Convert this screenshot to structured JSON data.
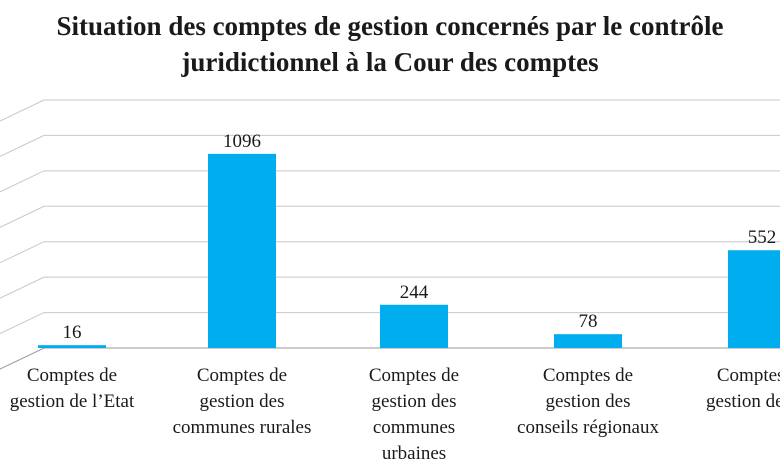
{
  "chart_data": {
    "type": "bar",
    "title": [
      "Situation des comptes de gestion concernés par le contrôle",
      "juridictionnel à la Cour des comptes"
    ],
    "categories": [
      [
        "Comptes de",
        "gestion de l’Etat"
      ],
      [
        "Comptes de",
        "gestion des",
        "communes rurales"
      ],
      [
        "Comptes de",
        "gestion des",
        "communes",
        "urbaines"
      ],
      [
        "Comptes de",
        "gestion des",
        "conseils régionaux"
      ],
      [
        "Comptes de",
        "gestion des EP"
      ]
    ],
    "values": [
      16,
      1096,
      244,
      78,
      552
    ],
    "data_labels": [
      "16",
      "1096",
      "244",
      "78",
      "552"
    ],
    "ylim": [
      0,
      1400
    ],
    "grid": true,
    "bar_color": "#00aeef",
    "grid_color": "#c8c8c8"
  }
}
